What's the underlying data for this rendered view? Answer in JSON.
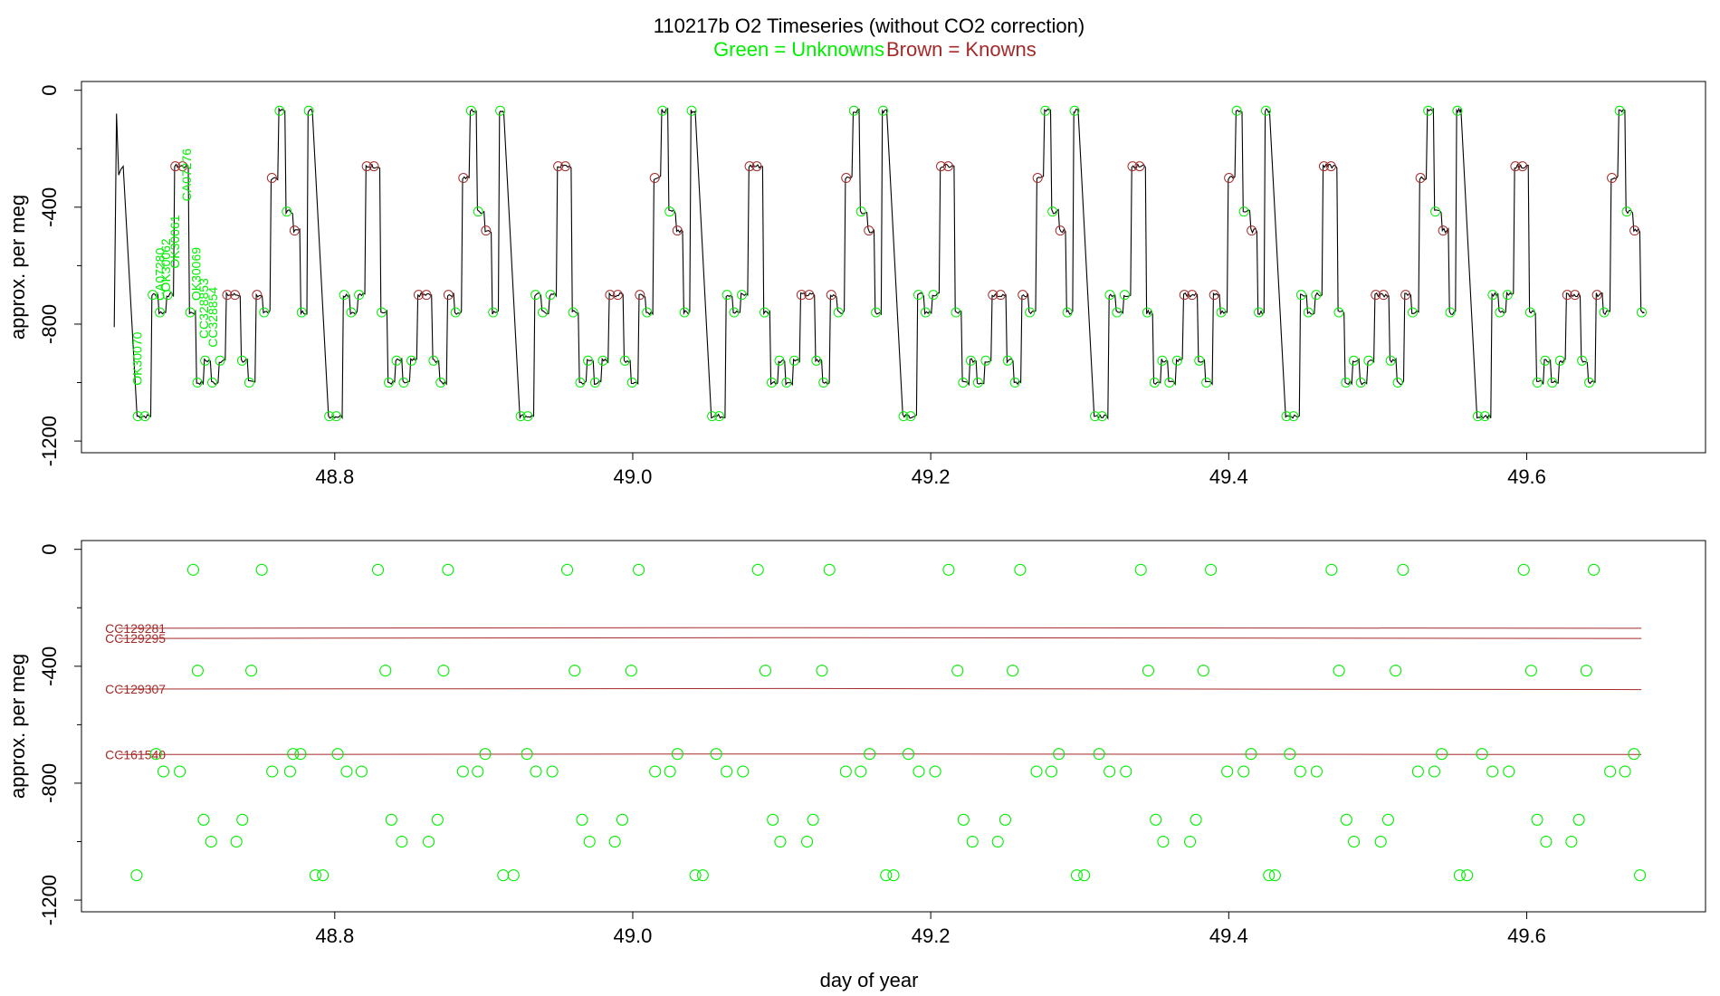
{
  "figure": {
    "title": "110217b   O2 Timeseries (without CO2 correction)",
    "legend_green": "Green = Unknowns",
    "legend_brown": "Brown = Knowns",
    "colors": {
      "unknown": "#00ee00",
      "known": "#a52a2a",
      "trace": "#000000",
      "axis": "#000000"
    }
  },
  "chart_data": [
    {
      "type": "line",
      "title": "110217b   O2 Timeseries (without CO2 correction)",
      "xlabel": "",
      "ylabel": "approx. per meg",
      "xlim": [
        48.63,
        49.72
      ],
      "ylim": [
        -1240,
        30
      ],
      "xticks": [
        48.8,
        49.0,
        49.2,
        49.4,
        49.6
      ],
      "xtick_labels": [
        "48.8",
        "49.0",
        "49.2",
        "49.4",
        "49.6"
      ],
      "yticks": [
        0,
        -400,
        -800,
        -1200
      ],
      "ytick_labels": [
        "0",
        "-400",
        "-800",
        "-1200"
      ],
      "trace_start": {
        "x": [
          48.652,
          48.6535,
          48.655,
          48.6565,
          48.658
        ],
        "y": [
          -810,
          -80,
          -290,
          -270,
          -260
        ]
      },
      "cycle_start": 48.6573,
      "cycle_period": 0.12848,
      "cycle_levels": [
        [
          0.01,
          -1115,
          "u"
        ],
        [
          0.0148,
          -1115,
          "u"
        ],
        [
          0.02,
          -700,
          "u"
        ],
        [
          0.0248,
          -760,
          "u"
        ],
        [
          0.03,
          -700,
          "u"
        ],
        [
          0.0352,
          -260,
          "k"
        ],
        [
          0.04,
          -260,
          "k"
        ],
        [
          0.0452,
          -760,
          "u"
        ],
        [
          0.05,
          -1000,
          "u"
        ],
        [
          0.0552,
          -925,
          "u"
        ],
        [
          0.06,
          -1000,
          "u"
        ],
        [
          0.0652,
          -925,
          "u"
        ],
        [
          0.07,
          -700,
          "k"
        ],
        [
          0.0752,
          -700,
          "k"
        ],
        [
          0.08,
          -925,
          "u"
        ],
        [
          0.0848,
          -1000,
          "u"
        ],
        [
          0.09,
          -700,
          "k"
        ],
        [
          0.0948,
          -760,
          "u"
        ],
        [
          0.1,
          -300,
          "k"
        ],
        [
          0.1052,
          -70,
          "u"
        ],
        [
          0.11,
          -415,
          "u"
        ],
        [
          0.1152,
          -480,
          "k"
        ],
        [
          0.12,
          -760,
          "u"
        ],
        [
          0.1248,
          -70,
          "u"
        ]
      ],
      "annotations": [
        "OK30070",
        "CA07280",
        "OK30062",
        "OK30061",
        "CA07276",
        "OK30069",
        "CC328853",
        "CC328854"
      ]
    },
    {
      "type": "scatter",
      "xlabel": "day of year",
      "ylabel": "approx. per meg",
      "xlim": [
        48.63,
        49.72
      ],
      "ylim": [
        -1240,
        30
      ],
      "xticks": [
        48.8,
        49.0,
        49.2,
        49.4,
        49.6
      ],
      "xtick_labels": [
        "48.8",
        "49.0",
        "49.2",
        "49.4",
        "49.6"
      ],
      "yticks": [
        0,
        -400,
        -800,
        -1200
      ],
      "ytick_labels": [
        "0",
        "-400",
        "-800",
        "-1200"
      ],
      "unknown_points": {
        "x": [
          48.667,
          48.68,
          48.685,
          48.696,
          48.705,
          48.708,
          48.712,
          48.717,
          48.734,
          48.738,
          48.744,
          48.751,
          48.758,
          48.77,
          48.772,
          48.777,
          48.787,
          48.792,
          48.802,
          48.808,
          48.818,
          48.829,
          48.834,
          48.838,
          48.845,
          48.863,
          48.869,
          48.873,
          48.876,
          48.886,
          48.896,
          48.901,
          48.913,
          48.92,
          48.929,
          48.935,
          48.946,
          48.956,
          48.961,
          48.966,
          48.971,
          48.988,
          48.993,
          48.999,
          49.004,
          49.015,
          49.025,
          49.03,
          49.042,
          49.047,
          49.056,
          49.063,
          49.074,
          49.084,
          49.089,
          49.094,
          49.099,
          49.117,
          49.121,
          49.127,
          49.132,
          49.143,
          49.153,
          49.159,
          49.17,
          49.175,
          49.185,
          49.192,
          49.203,
          49.212,
          49.218,
          49.222,
          49.228,
          49.245,
          49.25,
          49.255,
          49.26,
          49.271,
          49.281,
          49.286,
          49.298,
          49.303,
          49.313,
          49.32,
          49.331,
          49.341,
          49.346,
          49.351,
          49.356,
          49.374,
          49.378,
          49.383,
          49.388,
          49.399,
          49.41,
          49.415,
          49.427,
          49.431,
          49.441,
          49.448,
          49.459,
          49.469,
          49.474,
          49.479,
          49.484,
          49.502,
          49.507,
          49.512,
          49.517,
          49.527,
          49.538,
          49.543,
          49.555,
          49.56,
          49.57,
          49.577,
          49.588,
          49.598,
          49.603,
          49.607,
          49.613,
          49.63,
          49.635,
          49.64,
          49.645,
          49.656,
          49.666,
          49.672,
          49.676
        ],
        "y": [
          -1115,
          -700,
          -760,
          -760,
          -70,
          -415,
          -925,
          -1000,
          -1000,
          -925,
          -415,
          -70,
          -760,
          -760,
          -700,
          -700,
          -1115,
          -1115,
          -700,
          -760,
          -760,
          -70,
          -415,
          -925,
          -1000,
          -1000,
          -925,
          -415,
          -70,
          -760,
          -760,
          -700,
          -1115,
          -1115,
          -700,
          -760,
          -760,
          -70,
          -415,
          -925,
          -1000,
          -1000,
          -925,
          -415,
          -70,
          -760,
          -760,
          -700,
          -1115,
          -1115,
          -700,
          -760,
          -760,
          -70,
          -415,
          -925,
          -1000,
          -1000,
          -925,
          -415,
          -70,
          -760,
          -760,
          -700,
          -1115,
          -1115,
          -700,
          -760,
          -760,
          -70,
          -415,
          -925,
          -1000,
          -1000,
          -925,
          -415,
          -70,
          -760,
          -760,
          -700,
          -1115,
          -1115,
          -700,
          -760,
          -760,
          -70,
          -415,
          -925,
          -1000,
          -1000,
          -925,
          -415,
          -70,
          -760,
          -760,
          -700,
          -1115,
          -1115,
          -700,
          -760,
          -760,
          -70,
          -415,
          -925,
          -1000,
          -1000,
          -925,
          -415,
          -70,
          -760,
          -760,
          -700,
          -1115,
          -1115,
          -700,
          -760,
          -760,
          -70,
          -415,
          -925,
          -1000,
          -1000,
          -925,
          -415,
          -70,
          -760,
          -760,
          -700,
          -1115
        ]
      },
      "known_lines": [
        {
          "name": "CC129281",
          "x": [
            48.655,
            49.1,
            49.677
          ],
          "y": [
            -270,
            -268,
            -270
          ]
        },
        {
          "name": "CC129295",
          "x": [
            48.655,
            49.1,
            49.677
          ],
          "y": [
            -305,
            -302,
            -305
          ]
        },
        {
          "name": "CC129307",
          "x": [
            48.655,
            49.1,
            49.677
          ],
          "y": [
            -478,
            -476,
            -480
          ]
        },
        {
          "name": "CC161540",
          "x": [
            48.655,
            49.1,
            49.677
          ],
          "y": [
            -702,
            -700,
            -702
          ]
        }
      ]
    }
  ]
}
